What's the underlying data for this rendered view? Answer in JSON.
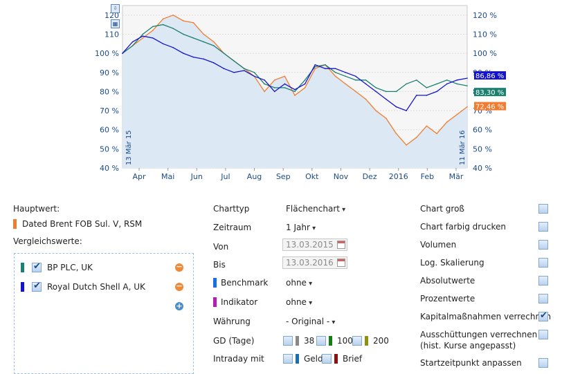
{
  "chart_data": {
    "type": "area",
    "x_labels": [
      "Apr",
      "Mai",
      "Jun",
      "Jul",
      "Aug",
      "Sep",
      "Okt",
      "Nov",
      "Dez",
      "2016",
      "Feb",
      "Mär"
    ],
    "y_ticks_left": [
      "120",
      "110",
      "100 %",
      "90 %",
      "80 %",
      "70 %",
      "60 %",
      "50 %",
      "40 %"
    ],
    "y_ticks_right": [
      "120 %",
      "110 %",
      "100 %",
      "90 %",
      "80 %",
      "70 %",
      "60 %",
      "50 %",
      "40 %"
    ],
    "ylim": [
      40,
      125
    ],
    "start_label": "13 Mär 15",
    "end_label": "11 Mär 16",
    "series": [
      {
        "name": "Dated Brent FOB Sul. V, RSM",
        "color": "#f07c30",
        "end_label": "72,46 %",
        "values": [
          100,
          104,
          108,
          112,
          118,
          120,
          117,
          116,
          110,
          106,
          100,
          96,
          92,
          88,
          80,
          86,
          88,
          78,
          82,
          92,
          94,
          88,
          84,
          80,
          76,
          70,
          66,
          58,
          52,
          56,
          62,
          58,
          64,
          68,
          72
        ]
      },
      {
        "name": "BP PLC, UK",
        "color": "#1a8070",
        "end_label": "83,30 %",
        "values": [
          100,
          104,
          110,
          114,
          115,
          113,
          110,
          108,
          106,
          104,
          100,
          96,
          92,
          90,
          84,
          82,
          82,
          80,
          86,
          93,
          94,
          90,
          88,
          86,
          86,
          82,
          80,
          80,
          84,
          86,
          82,
          84,
          86,
          84,
          83
        ]
      },
      {
        "name": "Royal Dutch Shell A, UK",
        "color": "#1414d0",
        "end_label": "86,86 %",
        "values": [
          100,
          106,
          109,
          108,
          105,
          103,
          100,
          98,
          97,
          95,
          92,
          90,
          91,
          88,
          86,
          80,
          84,
          81,
          84,
          94,
          92,
          92,
          90,
          88,
          84,
          80,
          76,
          72,
          70,
          78,
          78,
          80,
          84,
          86,
          87
        ]
      }
    ]
  },
  "chart_icons": [
    "export-icon",
    "table-icon"
  ],
  "left": {
    "hauptwert_title": "Hauptwert:",
    "hauptwert_name": "Dated Brent FOB Sul. V, RSM",
    "vergleich_title": "Vergleichswerte:",
    "compare": [
      {
        "name": "BP PLC, UK",
        "color": "#1a8070",
        "checked": true
      },
      {
        "name": "Royal Dutch Shell A, UK",
        "color": "#1414d0",
        "checked": true
      }
    ]
  },
  "mid": {
    "charttyp_label": "Charttyp",
    "charttyp_value": "Flächenchart",
    "zeitraum_label": "Zeitraum",
    "zeitraum_value": "1 Jahr",
    "von_label": "Von",
    "von_value": "13.03.2015",
    "bis_label": "Bis",
    "bis_value": "13.03.2016",
    "benchmark_label": "Benchmark",
    "benchmark_value": "ohne",
    "benchmark_color": "#1a6fe0",
    "indikator_label": "Indikator",
    "indikator_value": "ohne",
    "indikator_color": "#b020b0",
    "waehrung_label": "Währung",
    "waehrung_value": "- Original -",
    "gd_label": "GD (Tage)",
    "gd_38": "38",
    "gd_100": "100",
    "gd_200": "200",
    "intraday_label": "Intraday mit",
    "geld": "Geld",
    "brief": "Brief"
  },
  "right": {
    "options": [
      {
        "label": "Chart groß",
        "checked": false
      },
      {
        "label": "Chart farbig drucken",
        "checked": false
      },
      {
        "label": "Volumen",
        "checked": false
      },
      {
        "label": "Log. Skalierung",
        "checked": false
      },
      {
        "label": "Absolutwerte",
        "checked": false
      },
      {
        "label": "Prozentwerte",
        "checked": false
      },
      {
        "label": "Kapitalmaßnahmen verrechnen",
        "checked": true
      },
      {
        "label": "Ausschüttungen verrechnen",
        "label2": "(hist. Kurse angepasst)",
        "checked": false
      },
      {
        "label": "Startzeitpunkt anpassen",
        "checked": false
      }
    ]
  }
}
